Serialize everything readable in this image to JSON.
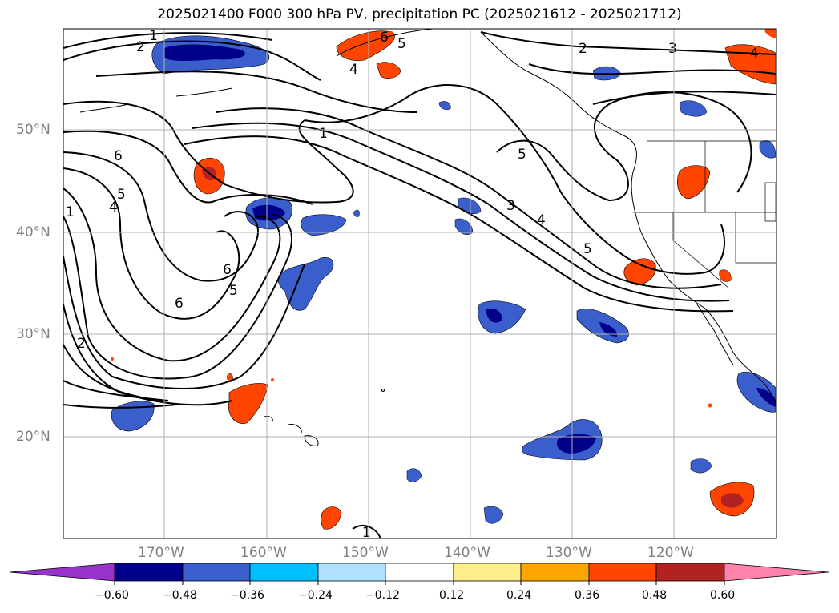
{
  "title": "2025021400 F000 300 hPa PV, precipitation PC (2025021612 - 2025021712)",
  "lat_labels": [
    "50°N",
    "40°N",
    "30°N",
    "20°N"
  ],
  "lon_labels": [
    "170°W",
    "160°W",
    "150°W",
    "140°W",
    "130°W",
    "120°W"
  ],
  "colorbar": {
    "ticks": [
      "−0.60",
      "−0.48",
      "−0.36",
      "−0.24",
      "−0.12",
      "0.12",
      "0.24",
      "0.36",
      "0.48",
      "0.60"
    ],
    "colors": [
      "#9932cc",
      "#00008b",
      "#3a5fcd",
      "#00bfff",
      "#b0e2ff",
      "#ffffff",
      "#ffec8b",
      "#ffa500",
      "#ff4500",
      "#b22222",
      "#ff82ab"
    ]
  },
  "contour_labels": [
    "1",
    "2",
    "1",
    "2",
    "3",
    "4",
    "6",
    "4",
    "5",
    "4",
    "5",
    "6",
    "1",
    "5",
    "3",
    "4",
    "5",
    "6",
    "5",
    "6",
    "2",
    "1"
  ]
}
